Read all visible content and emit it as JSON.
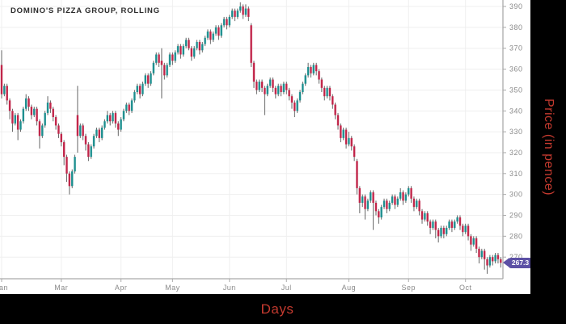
{
  "chart": {
    "title": "DOMINO'S PIZZA GROUP, ROLLING",
    "xlabel": "Days",
    "ylabel": "Price (in pence)",
    "last_price_label": "267.3"
  },
  "chart_data": {
    "type": "candlestick",
    "title": "DOMINO'S PIZZA GROUP, ROLLING",
    "xlabel": "Days",
    "ylabel": "Price (in pence)",
    "ylim": [
      258,
      393
    ],
    "grid": true,
    "y_ticks": [
      390,
      380,
      370,
      360,
      350,
      340,
      330,
      320,
      310,
      300,
      290,
      280,
      270
    ],
    "x_ticks": [
      {
        "label": "Jan",
        "day": 0
      },
      {
        "label": "Mar",
        "day": 22
      },
      {
        "label": "Apr",
        "day": 44
      },
      {
        "label": "May",
        "day": 63
      },
      {
        "label": "Jun",
        "day": 84
      },
      {
        "label": "Jul",
        "day": 105
      },
      {
        "label": "Aug",
        "day": 128
      },
      {
        "label": "Sep",
        "day": 150
      },
      {
        "label": "Oct",
        "day": 171
      }
    ],
    "last_price": 267.3,
    "colors": {
      "up": "#1e8f8f",
      "down": "#c1264a",
      "wick": "#555555",
      "grid": "#efefef",
      "axis_line": "#aaaaaa",
      "tick_label": "#8a8a8a",
      "badge_bg": "#5c50a5",
      "badge_text": "#ffffff",
      "axis_title": "#c43a2f",
      "panel_bg": "#ffffff",
      "frame_bg": "#000000"
    },
    "candles": [
      [
        362,
        369,
        346,
        348
      ],
      [
        348,
        353,
        347,
        352
      ],
      [
        352,
        353,
        343,
        345
      ],
      [
        345,
        346,
        336,
        340
      ],
      [
        340,
        341,
        330,
        334
      ],
      [
        334,
        339,
        333,
        338
      ],
      [
        338,
        339,
        326,
        331
      ],
      [
        331,
        336,
        330,
        335
      ],
      [
        335,
        342,
        334,
        341
      ],
      [
        341,
        348,
        340,
        346
      ],
      [
        346,
        347,
        340,
        342
      ],
      [
        342,
        343,
        336,
        338
      ],
      [
        338,
        342,
        337,
        341
      ],
      [
        341,
        342,
        333,
        335
      ],
      [
        335,
        336,
        322,
        328
      ],
      [
        328,
        334,
        327,
        333
      ],
      [
        333,
        340,
        332,
        339
      ],
      [
        339,
        347,
        338,
        344
      ],
      [
        344,
        345,
        339,
        341
      ],
      [
        341,
        342,
        335,
        337
      ],
      [
        337,
        338,
        331,
        333
      ],
      [
        333,
        334,
        327,
        329
      ],
      [
        329,
        330,
        323,
        325
      ],
      [
        325,
        326,
        314,
        318
      ],
      [
        318,
        319,
        306,
        310
      ],
      [
        310,
        311,
        300,
        304
      ],
      [
        304,
        312,
        303,
        311
      ],
      [
        311,
        319,
        310,
        318
      ],
      [
        338,
        352,
        320,
        328
      ],
      [
        328,
        334,
        327,
        333
      ],
      [
        333,
        334,
        326,
        328
      ],
      [
        328,
        329,
        321,
        324
      ],
      [
        324,
        325,
        316,
        318
      ],
      [
        318,
        324,
        317,
        323
      ],
      [
        323,
        329,
        322,
        328
      ],
      [
        328,
        332,
        327,
        331
      ],
      [
        331,
        332,
        325,
        327
      ],
      [
        327,
        333,
        326,
        332
      ],
      [
        332,
        336,
        331,
        335
      ],
      [
        335,
        340,
        334,
        338
      ],
      [
        338,
        339,
        333,
        335
      ],
      [
        335,
        340,
        334,
        339
      ],
      [
        339,
        340,
        332,
        334
      ],
      [
        334,
        335,
        328,
        331
      ],
      [
        331,
        337,
        330,
        336
      ],
      [
        336,
        341,
        335,
        340
      ],
      [
        340,
        344,
        339,
        343
      ],
      [
        343,
        344,
        338,
        340
      ],
      [
        340,
        346,
        339,
        345
      ],
      [
        345,
        350,
        344,
        349
      ],
      [
        349,
        353,
        348,
        352
      ],
      [
        352,
        353,
        346,
        348
      ],
      [
        348,
        354,
        347,
        353
      ],
      [
        353,
        358,
        352,
        357
      ],
      [
        357,
        358,
        351,
        353
      ],
      [
        353,
        359,
        352,
        358
      ],
      [
        358,
        364,
        357,
        363
      ],
      [
        363,
        368,
        362,
        367
      ],
      [
        367,
        368,
        361,
        363
      ],
      [
        364,
        370,
        346,
        362
      ],
      [
        362,
        363,
        355,
        357
      ],
      [
        357,
        363,
        356,
        362
      ],
      [
        362,
        368,
        361,
        367
      ],
      [
        367,
        368,
        362,
        364
      ],
      [
        364,
        369,
        363,
        368
      ],
      [
        368,
        372,
        367,
        371
      ],
      [
        371,
        372,
        365,
        367
      ],
      [
        367,
        372,
        366,
        371
      ],
      [
        371,
        375,
        370,
        374
      ],
      [
        374,
        375,
        369,
        370
      ],
      [
        370,
        371,
        364,
        366
      ],
      [
        366,
        371,
        365,
        370
      ],
      [
        370,
        374,
        369,
        373
      ],
      [
        373,
        374,
        367,
        369
      ],
      [
        369,
        373,
        368,
        372
      ],
      [
        372,
        376,
        371,
        375
      ],
      [
        375,
        379,
        374,
        378
      ],
      [
        378,
        379,
        372,
        374
      ],
      [
        374,
        378,
        373,
        377
      ],
      [
        377,
        381,
        376,
        380
      ],
      [
        380,
        381,
        374,
        376
      ],
      [
        376,
        382,
        375,
        381
      ],
      [
        381,
        385,
        380,
        384
      ],
      [
        384,
        385,
        379,
        381
      ],
      [
        381,
        386,
        380,
        385
      ],
      [
        385,
        389,
        384,
        388
      ],
      [
        388,
        389,
        383,
        385
      ],
      [
        385,
        389,
        384,
        388
      ],
      [
        388,
        392,
        387,
        390
      ],
      [
        390,
        391,
        384,
        386
      ],
      [
        386,
        391,
        385,
        389
      ],
      [
        389,
        390,
        383,
        385
      ],
      [
        381,
        382,
        361,
        363
      ],
      [
        363,
        364,
        351,
        354
      ],
      [
        354,
        355,
        348,
        350
      ],
      [
        350,
        355,
        349,
        354
      ],
      [
        354,
        355,
        349,
        351
      ],
      [
        351,
        352,
        338,
        348
      ],
      [
        348,
        353,
        347,
        352
      ],
      [
        352,
        356,
        351,
        355
      ],
      [
        355,
        356,
        349,
        351
      ],
      [
        351,
        352,
        346,
        348
      ],
      [
        348,
        353,
        347,
        352
      ],
      [
        352,
        353,
        347,
        349
      ],
      [
        349,
        354,
        348,
        353
      ],
      [
        353,
        354,
        348,
        350
      ],
      [
        350,
        351,
        345,
        347
      ],
      [
        347,
        348,
        341,
        344
      ],
      [
        344,
        345,
        337,
        340
      ],
      [
        340,
        346,
        339,
        345
      ],
      [
        345,
        350,
        344,
        349
      ],
      [
        349,
        354,
        348,
        353
      ],
      [
        353,
        358,
        352,
        357
      ],
      [
        357,
        363,
        356,
        361
      ],
      [
        361,
        362,
        356,
        358
      ],
      [
        358,
        363,
        357,
        362
      ],
      [
        362,
        363,
        357,
        359
      ],
      [
        359,
        360,
        353,
        355
      ],
      [
        355,
        356,
        349,
        351
      ],
      [
        351,
        352,
        345,
        347
      ],
      [
        347,
        352,
        346,
        351
      ],
      [
        351,
        352,
        345,
        347
      ],
      [
        347,
        348,
        341,
        343
      ],
      [
        343,
        344,
        336,
        338
      ],
      [
        338,
        339,
        331,
        333
      ],
      [
        333,
        334,
        325,
        327
      ],
      [
        327,
        332,
        326,
        331
      ],
      [
        331,
        332,
        322,
        324
      ],
      [
        324,
        330,
        323,
        327
      ],
      [
        327,
        328,
        321,
        323
      ],
      [
        323,
        324,
        316,
        318
      ],
      [
        316,
        317,
        300,
        303
      ],
      [
        303,
        304,
        291,
        296
      ],
      [
        296,
        300,
        294,
        299
      ],
      [
        299,
        300,
        288,
        293
      ],
      [
        293,
        298,
        292,
        297
      ],
      [
        297,
        302,
        296,
        301
      ],
      [
        301,
        302,
        283,
        296
      ],
      [
        296,
        297,
        290,
        292
      ],
      [
        292,
        293,
        286,
        289
      ],
      [
        289,
        295,
        288,
        294
      ],
      [
        294,
        298,
        293,
        297
      ],
      [
        297,
        298,
        291,
        293
      ],
      [
        293,
        297,
        292,
        296
      ],
      [
        296,
        300,
        295,
        299
      ],
      [
        299,
        300,
        293,
        295
      ],
      [
        295,
        299,
        294,
        298
      ],
      [
        298,
        303,
        297,
        301
      ],
      [
        301,
        302,
        295,
        297
      ],
      [
        297,
        301,
        296,
        300
      ],
      [
        300,
        304,
        299,
        303
      ],
      [
        303,
        304,
        296,
        298
      ],
      [
        298,
        299,
        292,
        294
      ],
      [
        294,
        298,
        293,
        297
      ],
      [
        297,
        298,
        290,
        292
      ],
      [
        292,
        293,
        286,
        288
      ],
      [
        288,
        292,
        287,
        291
      ],
      [
        291,
        292,
        285,
        287
      ],
      [
        287,
        288,
        281,
        284
      ],
      [
        284,
        288,
        283,
        287
      ],
      [
        287,
        288,
        279,
        283
      ],
      [
        283,
        284,
        277,
        280
      ],
      [
        280,
        285,
        279,
        284
      ],
      [
        284,
        285,
        279,
        281
      ],
      [
        281,
        285,
        280,
        284
      ],
      [
        284,
        288,
        283,
        287
      ],
      [
        287,
        288,
        282,
        284
      ],
      [
        284,
        288,
        283,
        287
      ],
      [
        287,
        290,
        286,
        289
      ],
      [
        289,
        290,
        283,
        285
      ],
      [
        285,
        286,
        280,
        282
      ],
      [
        282,
        286,
        281,
        285
      ],
      [
        285,
        286,
        278,
        280
      ],
      [
        280,
        281,
        273,
        276
      ],
      [
        276,
        280,
        275,
        279
      ],
      [
        279,
        280,
        272,
        274
      ],
      [
        274,
        275,
        267,
        270
      ],
      [
        270,
        274,
        269,
        273
      ],
      [
        273,
        274,
        264,
        269
      ],
      [
        269,
        270,
        262,
        266
      ],
      [
        266,
        271,
        265,
        270
      ],
      [
        270,
        271,
        266,
        268
      ],
      [
        268,
        272,
        267,
        271
      ],
      [
        271,
        272,
        267,
        269
      ],
      [
        269,
        270,
        265,
        267.3
      ]
    ]
  }
}
